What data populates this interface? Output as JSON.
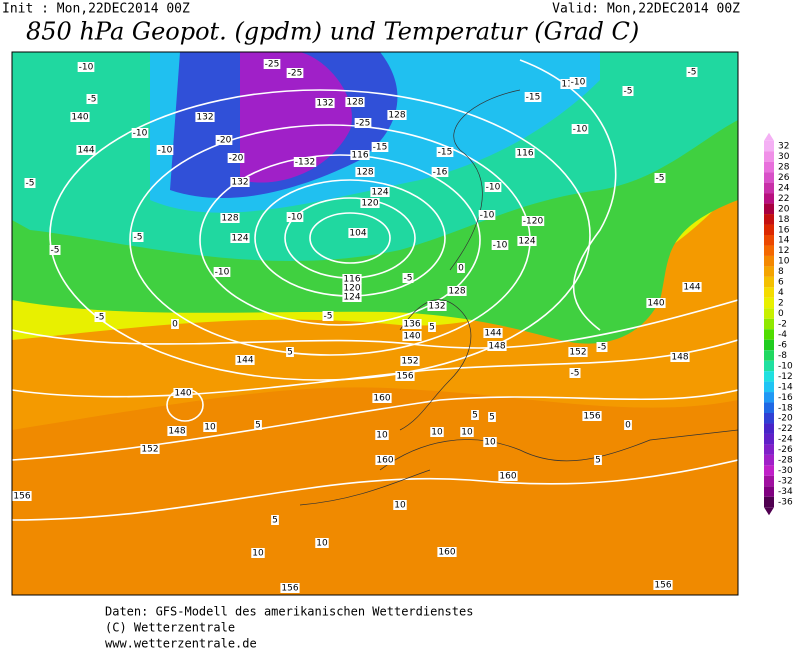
{
  "header": {
    "init": "Init : Mon,22DEC2014 00Z",
    "valid": "Valid: Mon,22DEC2014 00Z",
    "title": "850 hPa Geopot. (gpdm) und Temperatur (Grad C)"
  },
  "legend": {
    "ticks": [
      32,
      30,
      28,
      26,
      24,
      22,
      20,
      18,
      16,
      14,
      12,
      10,
      8,
      6,
      4,
      2,
      0,
      -2,
      -4,
      -6,
      -8,
      -10,
      -12,
      -14,
      -16,
      -18,
      -20,
      -22,
      -24,
      -26,
      -28,
      -30,
      -32,
      -34,
      -36
    ],
    "colors": [
      "#f4b0f4",
      "#f090e8",
      "#e870dc",
      "#d850c8",
      "#c830a8",
      "#b81080",
      "#a80040",
      "#c41010",
      "#dc2800",
      "#ec4800",
      "#f46800",
      "#f48800",
      "#f4a400",
      "#f4c000",
      "#f4dc00",
      "#e8f000",
      "#c8f000",
      "#90e800",
      "#50dc00",
      "#20cc20",
      "#20d860",
      "#20e0a0",
      "#20e0e0",
      "#20c4f4",
      "#2098f4",
      "#2068e4",
      "#3040d4",
      "#4824c8",
      "#6020c8",
      "#8020c8",
      "#a020c8",
      "#c020c8",
      "#a010a0",
      "#800080",
      "#500050"
    ]
  },
  "map_labels": [
    "-10",
    "-5",
    "140",
    "-10",
    "144",
    "-10",
    "-5",
    "-5",
    "-5",
    "-5",
    "0",
    "5",
    "144",
    "140",
    "148",
    "10",
    "152",
    "5",
    "156",
    "5",
    "10",
    "10",
    "156",
    "160",
    "10",
    "160",
    "10",
    "10",
    "10",
    "10",
    "160",
    "160",
    "156",
    "104",
    "120",
    "124",
    "116",
    "128",
    "132",
    "136",
    "140",
    "144",
    "148",
    "152",
    "156",
    "152",
    "156",
    "148",
    "140",
    "144",
    "-15",
    "-16",
    "-10",
    "-10",
    "-10",
    "-120",
    "124",
    "116",
    "116",
    "-15",
    "-10",
    "-10",
    "-5",
    "-5",
    "-5",
    "132",
    "-20",
    "-20",
    "132",
    "128",
    "124",
    "-25",
    "-25",
    "132",
    "128",
    "-25",
    "128",
    "-15",
    "116",
    "-132",
    "128",
    "124",
    "120",
    "-10",
    "-10",
    "-5",
    "-5",
    "5",
    "0",
    "-5",
    "-5",
    "0",
    "5",
    "5",
    "5"
  ],
  "footer": [
    "Daten: GFS-Modell des amerikanischen Wetterdienstes",
    "(C) Wetterzentrale",
    "www.wetterzentrale.de"
  ]
}
